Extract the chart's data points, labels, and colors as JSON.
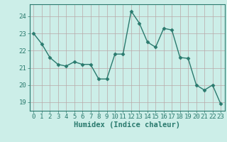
{
  "x": [
    0,
    1,
    2,
    3,
    4,
    5,
    6,
    7,
    8,
    9,
    10,
    11,
    12,
    13,
    14,
    15,
    16,
    17,
    18,
    19,
    20,
    21,
    22,
    23
  ],
  "y": [
    23.0,
    22.4,
    21.6,
    21.2,
    21.1,
    21.35,
    21.2,
    21.2,
    20.35,
    20.35,
    21.8,
    21.8,
    24.3,
    23.6,
    22.5,
    22.2,
    23.3,
    23.2,
    21.6,
    21.55,
    20.0,
    19.7,
    20.0,
    18.9
  ],
  "line_color": "#2a7a6e",
  "marker": "D",
  "marker_size": 2.5,
  "bg_color": "#cceee8",
  "grid_color": "#b8a8a8",
  "xlabel": "Humidex (Indice chaleur)",
  "xlim": [
    -0.5,
    23.5
  ],
  "ylim": [
    18.5,
    24.7
  ],
  "yticks": [
    19,
    20,
    21,
    22,
    23,
    24
  ],
  "xticks": [
    0,
    1,
    2,
    3,
    4,
    5,
    6,
    7,
    8,
    9,
    10,
    11,
    12,
    13,
    14,
    15,
    16,
    17,
    18,
    19,
    20,
    21,
    22,
    23
  ],
  "tick_fontsize": 6.5,
  "xlabel_fontsize": 7.5,
  "line_width": 1.0,
  "spine_color": "#2a7a6e",
  "tick_color": "#2a7a6e",
  "label_color": "#2a7a6e"
}
